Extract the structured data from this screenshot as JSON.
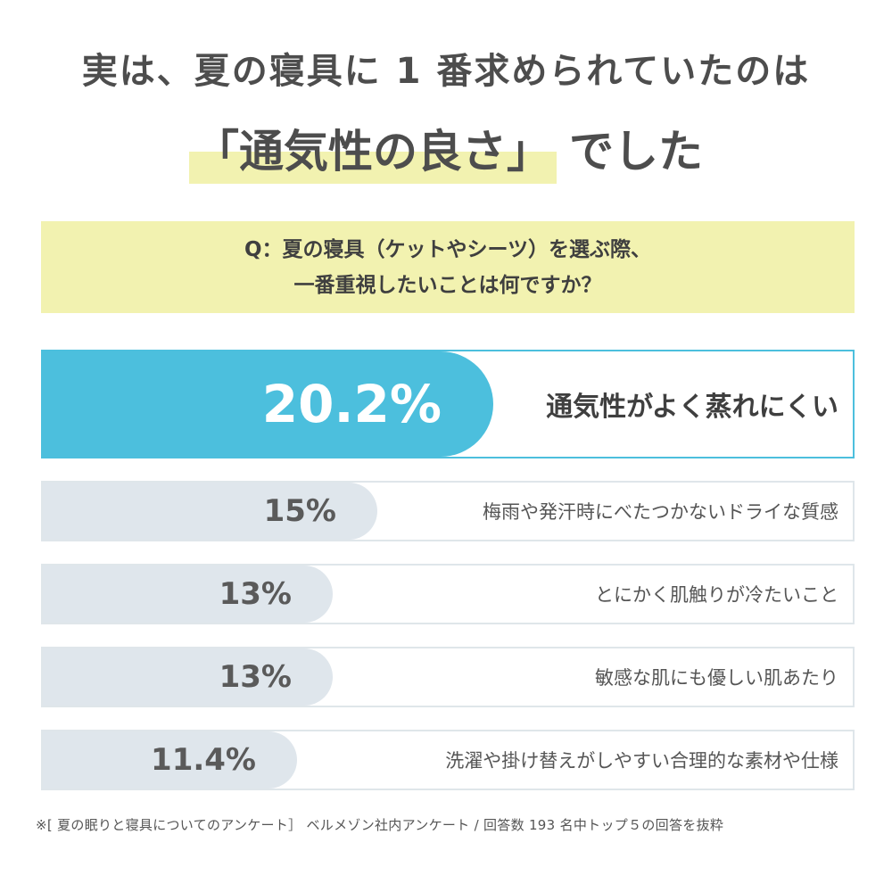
{
  "header": {
    "line1": "実は、夏の寝具に 1 番求められていたのは",
    "highlight": "「通気性の良さ」",
    "line2_suffix": "でした"
  },
  "question": {
    "line1": "Q：夏の寝具（ケットやシーツ）を選ぶ際、",
    "line2": "一番重視したいことは何ですか？"
  },
  "colors": {
    "accent": "#4cbfdd",
    "bar_gray": "#dfe6ec",
    "highlight": "#f2f2b0"
  },
  "chart_data": {
    "type": "bar",
    "orientation": "horizontal",
    "categories": [
      "通気性がよく蒸れにくい",
      "梅雨や発汗時にべたつかないドライな質感",
      "とにかく肌触りが冷たいこと",
      "敏感な肌にも優しい肌あたり",
      "洗濯や掛け替えがしやすい合理的な素材や仕様"
    ],
    "values": [
      20.2,
      15,
      13,
      13,
      11.4
    ],
    "value_labels": [
      "20.2%",
      "15%",
      "13%",
      "13%",
      "11.4%"
    ],
    "unit": "%"
  },
  "footnote": "※[ 夏の眠りと寝具についてのアンケート］ ベルメゾン社内アンケート / 回答数 193 名中トップ５の回答を抜粋"
}
